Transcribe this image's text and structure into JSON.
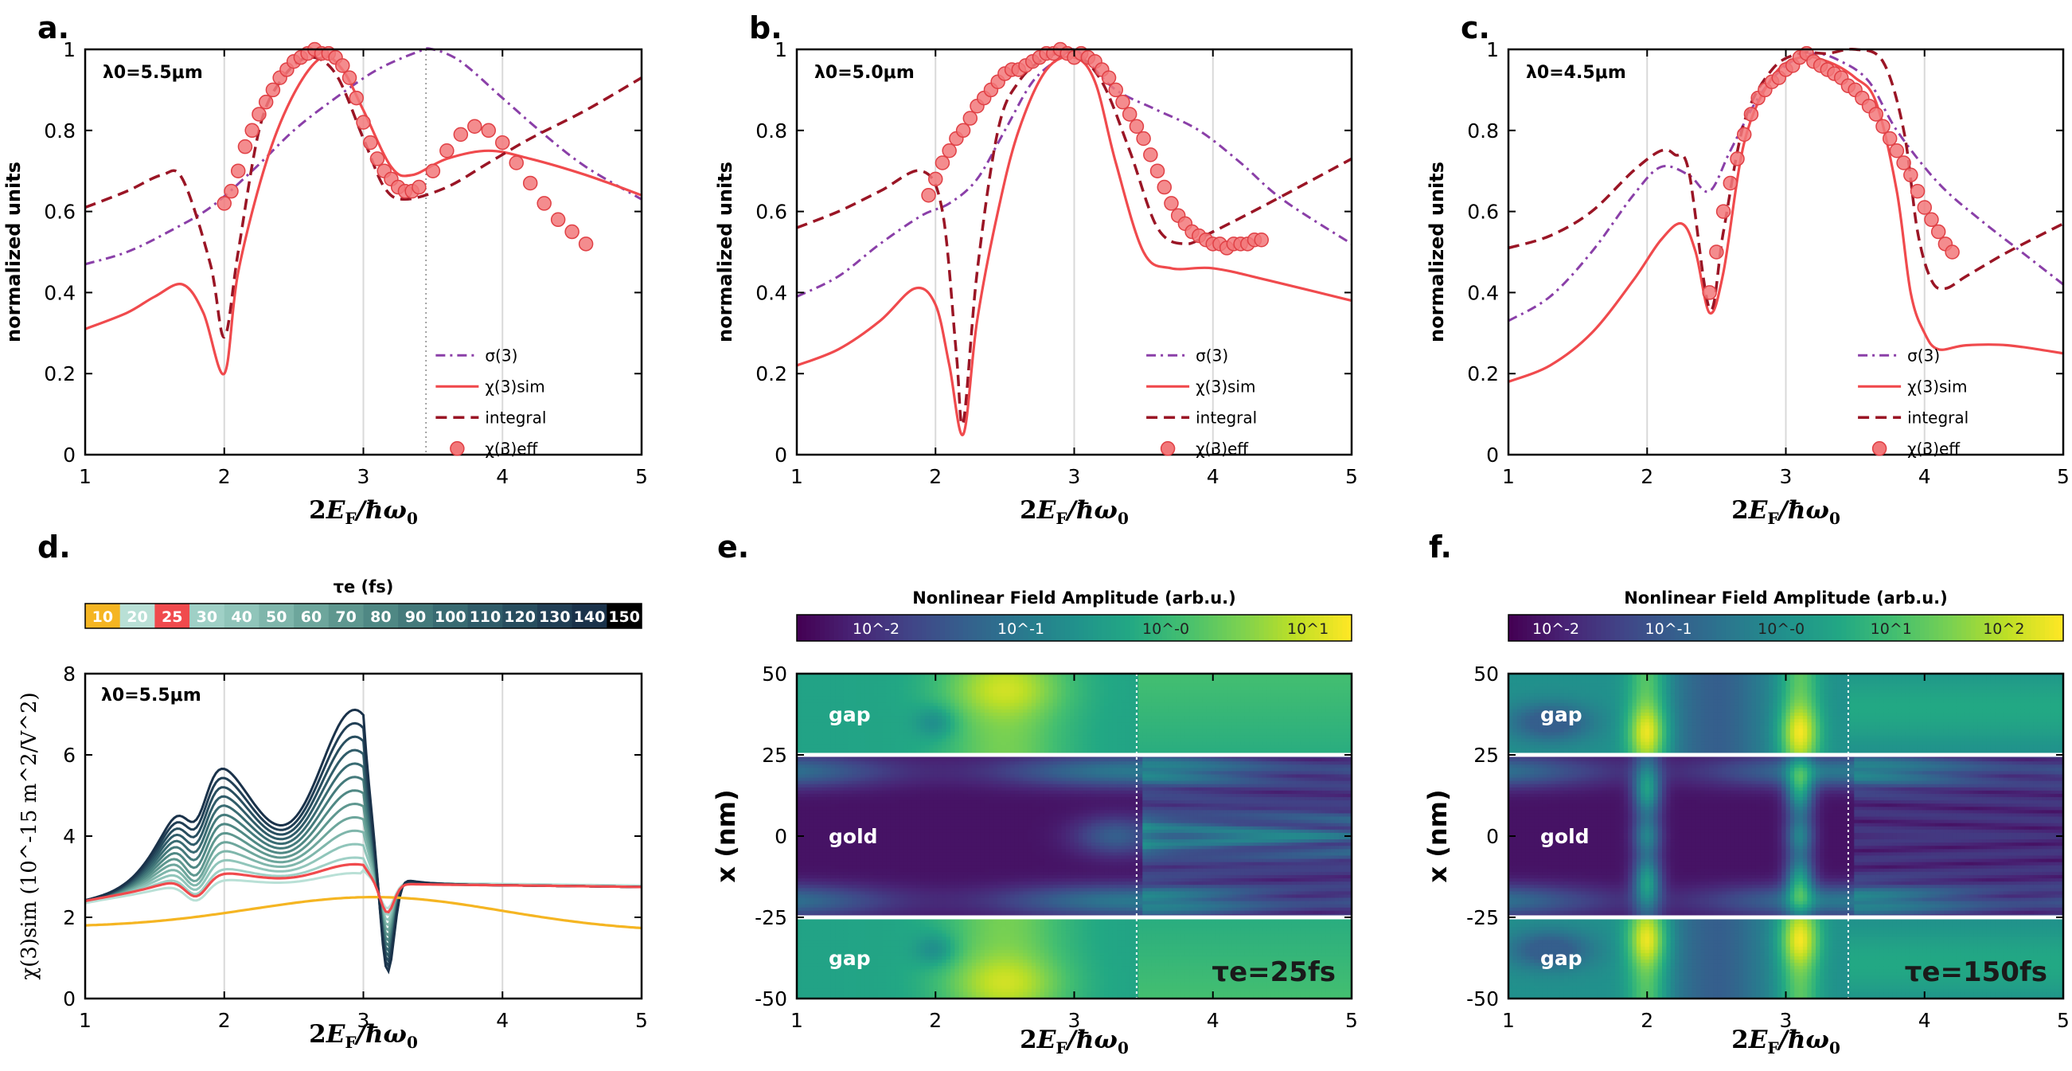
{
  "colors": {
    "sigma": "#8a3fa8",
    "sim": "#f04a4d",
    "integral": "#9a1525",
    "eff_fill": "#f2787a",
    "eff_edge": "#e04045",
    "gridline": "#d9d9d9",
    "white_line": "#ffffff"
  },
  "chart_data": [
    {
      "id": "a",
      "type": "line",
      "panel_label": "a.",
      "annotation_lambda": "λ0=5.5μm",
      "xlabel": "2E_F/ħω_0",
      "ylabel": "normalized units",
      "xlim": [
        1,
        5
      ],
      "ylim": [
        0,
        1
      ],
      "xticks": [
        "1",
        "2",
        "3",
        "4",
        "5"
      ],
      "yticks": [
        "0",
        "0.2",
        "0.4",
        "0.6",
        "0.8",
        "1"
      ],
      "vline_x": 3.45,
      "legend": [
        "σ(3)",
        "χ(3)sim",
        "integral",
        "χ(3)eff"
      ],
      "series": [
        {
          "name": "σ(3)",
          "style": "dashdot",
          "x": [
            1,
            1.3,
            1.6,
            1.9,
            2.2,
            2.5,
            2.8,
            3.1,
            3.4,
            3.5,
            3.7,
            4.0,
            4.3,
            4.6,
            5.0
          ],
          "y": [
            0.47,
            0.5,
            0.55,
            0.61,
            0.7,
            0.8,
            0.88,
            0.95,
            0.995,
            1.0,
            0.97,
            0.88,
            0.79,
            0.71,
            0.63
          ]
        },
        {
          "name": "χ(3)sim",
          "style": "solid",
          "x": [
            1,
            1.3,
            1.5,
            1.7,
            1.85,
            2.0,
            2.1,
            2.3,
            2.5,
            2.7,
            2.85,
            3.0,
            3.2,
            3.35,
            3.6,
            3.9,
            4.2,
            4.6,
            5.0
          ],
          "y": [
            0.31,
            0.35,
            0.39,
            0.42,
            0.35,
            0.2,
            0.45,
            0.72,
            0.89,
            0.98,
            0.95,
            0.85,
            0.71,
            0.69,
            0.73,
            0.75,
            0.73,
            0.69,
            0.64
          ]
        },
        {
          "name": "integral",
          "style": "dashed",
          "x": [
            1,
            1.3,
            1.55,
            1.7,
            1.9,
            2.0,
            2.1,
            2.25,
            2.4,
            2.6,
            2.8,
            3.0,
            3.15,
            3.3,
            3.6,
            3.9,
            4.2,
            4.6,
            5.0
          ],
          "y": [
            0.61,
            0.65,
            0.69,
            0.68,
            0.47,
            0.29,
            0.5,
            0.8,
            0.92,
            0.98,
            0.94,
            0.78,
            0.66,
            0.63,
            0.66,
            0.72,
            0.78,
            0.85,
            0.93
          ]
        },
        {
          "name": "χ(3)eff",
          "style": "markers",
          "x": [
            2.0,
            2.05,
            2.1,
            2.15,
            2.2,
            2.25,
            2.3,
            2.35,
            2.4,
            2.45,
            2.5,
            2.55,
            2.6,
            2.65,
            2.7,
            2.75,
            2.8,
            2.85,
            2.9,
            2.95,
            3.0,
            3.05,
            3.1,
            3.15,
            3.2,
            3.25,
            3.3,
            3.35,
            3.4,
            3.5,
            3.6,
            3.7,
            3.8,
            3.9,
            4.0,
            4.1,
            4.2,
            4.3,
            4.4,
            4.5,
            4.6
          ],
          "y": [
            0.62,
            0.65,
            0.7,
            0.76,
            0.8,
            0.84,
            0.87,
            0.9,
            0.93,
            0.95,
            0.97,
            0.98,
            0.99,
            1.0,
            0.99,
            0.99,
            0.98,
            0.96,
            0.93,
            0.88,
            0.82,
            0.77,
            0.73,
            0.7,
            0.68,
            0.66,
            0.65,
            0.65,
            0.66,
            0.7,
            0.75,
            0.79,
            0.81,
            0.8,
            0.77,
            0.72,
            0.67,
            0.62,
            0.58,
            0.55,
            0.52
          ]
        }
      ]
    },
    {
      "id": "b",
      "type": "line",
      "panel_label": "b.",
      "annotation_lambda": "λ0=5.0μm",
      "xlabel": "2E_F/ħω_0",
      "ylabel": "normalized units",
      "xlim": [
        1,
        5
      ],
      "ylim": [
        0,
        1
      ],
      "xticks": [
        "1",
        "2",
        "3",
        "4",
        "5"
      ],
      "yticks": [
        "0",
        "0.2",
        "0.4",
        "0.6",
        "0.8",
        "1"
      ],
      "vline_x": null,
      "legend": [
        "σ(3)",
        "χ(3)sim",
        "integral",
        "χ(3)eff"
      ],
      "series": [
        {
          "name": "σ(3)",
          "style": "dashdot",
          "x": [
            1,
            1.3,
            1.6,
            1.9,
            2.1,
            2.3,
            2.5,
            2.7,
            2.9,
            3.0,
            3.1,
            3.3,
            3.6,
            3.9,
            4.2,
            4.5,
            5.0
          ],
          "y": [
            0.39,
            0.44,
            0.52,
            0.59,
            0.62,
            0.68,
            0.8,
            0.92,
            0.98,
            1.0,
            0.97,
            0.9,
            0.85,
            0.8,
            0.72,
            0.63,
            0.52
          ]
        },
        {
          "name": "χ(3)sim",
          "style": "solid",
          "x": [
            1,
            1.3,
            1.6,
            1.85,
            2.0,
            2.1,
            2.2,
            2.3,
            2.45,
            2.6,
            2.8,
            3.0,
            3.15,
            3.3,
            3.5,
            3.7,
            4.0,
            4.4,
            5.0
          ],
          "y": [
            0.22,
            0.26,
            0.33,
            0.41,
            0.37,
            0.22,
            0.05,
            0.33,
            0.6,
            0.8,
            0.95,
            0.98,
            0.92,
            0.72,
            0.5,
            0.46,
            0.46,
            0.43,
            0.38
          ]
        },
        {
          "name": "integral",
          "style": "dashed",
          "x": [
            1,
            1.3,
            1.6,
            1.9,
            2.05,
            2.15,
            2.2,
            2.3,
            2.45,
            2.6,
            2.8,
            3.0,
            3.2,
            3.4,
            3.6,
            3.8,
            4.0,
            4.4,
            5.0
          ],
          "y": [
            0.56,
            0.6,
            0.65,
            0.7,
            0.6,
            0.25,
            0.08,
            0.45,
            0.8,
            0.92,
            0.98,
            0.99,
            0.92,
            0.75,
            0.56,
            0.52,
            0.55,
            0.62,
            0.73
          ]
        },
        {
          "name": "χ(3)eff",
          "style": "markers",
          "x": [
            1.95,
            2.0,
            2.05,
            2.1,
            2.15,
            2.2,
            2.25,
            2.3,
            2.35,
            2.4,
            2.45,
            2.5,
            2.55,
            2.6,
            2.65,
            2.7,
            2.75,
            2.8,
            2.85,
            2.9,
            2.95,
            3.0,
            3.05,
            3.1,
            3.15,
            3.2,
            3.25,
            3.3,
            3.35,
            3.4,
            3.45,
            3.5,
            3.55,
            3.6,
            3.65,
            3.7,
            3.75,
            3.8,
            3.85,
            3.9,
            3.95,
            4.0,
            4.05,
            4.1,
            4.15,
            4.2,
            4.25,
            4.3,
            4.35
          ],
          "y": [
            0.64,
            0.68,
            0.72,
            0.75,
            0.78,
            0.8,
            0.83,
            0.86,
            0.88,
            0.9,
            0.92,
            0.94,
            0.95,
            0.95,
            0.96,
            0.97,
            0.98,
            0.99,
            0.99,
            1.0,
            0.99,
            0.98,
            0.99,
            0.98,
            0.97,
            0.95,
            0.93,
            0.9,
            0.87,
            0.84,
            0.81,
            0.78,
            0.74,
            0.7,
            0.66,
            0.62,
            0.59,
            0.57,
            0.55,
            0.54,
            0.53,
            0.52,
            0.52,
            0.51,
            0.52,
            0.52,
            0.52,
            0.53,
            0.53
          ]
        }
      ]
    },
    {
      "id": "c",
      "type": "line",
      "panel_label": "c.",
      "annotation_lambda": "λ0=4.5μm",
      "xlabel": "2E_F/ħω_0",
      "ylabel": "normalized units",
      "xlim": [
        1,
        5
      ],
      "ylim": [
        0,
        1
      ],
      "xticks": [
        "1",
        "2",
        "3",
        "4",
        "5"
      ],
      "yticks": [
        "0",
        "0.2",
        "0.4",
        "0.6",
        "0.8",
        "1"
      ],
      "vline_x": null,
      "legend": [
        "σ(3)",
        "χ(3)sim",
        "integral",
        "χ(3)eff"
      ],
      "series": [
        {
          "name": "σ(3)",
          "style": "dashdot",
          "x": [
            1,
            1.3,
            1.6,
            1.9,
            2.1,
            2.3,
            2.45,
            2.6,
            2.8,
            3.0,
            3.2,
            3.4,
            3.6,
            3.8,
            4.1,
            4.4,
            4.7,
            5.0
          ],
          "y": [
            0.33,
            0.39,
            0.5,
            0.64,
            0.71,
            0.69,
            0.65,
            0.75,
            0.88,
            0.96,
            0.99,
            0.97,
            0.92,
            0.8,
            0.67,
            0.58,
            0.5,
            0.42
          ]
        },
        {
          "name": "χ(3)sim",
          "style": "solid",
          "x": [
            1,
            1.3,
            1.6,
            1.9,
            2.1,
            2.25,
            2.35,
            2.45,
            2.55,
            2.7,
            2.9,
            3.1,
            3.3,
            3.5,
            3.65,
            3.8,
            3.9,
            4.0,
            4.1,
            4.3,
            4.6,
            5.0
          ],
          "y": [
            0.18,
            0.22,
            0.3,
            0.43,
            0.53,
            0.57,
            0.5,
            0.35,
            0.45,
            0.77,
            0.93,
            0.98,
            0.97,
            0.93,
            0.87,
            0.65,
            0.4,
            0.3,
            0.26,
            0.27,
            0.27,
            0.25
          ]
        },
        {
          "name": "integral",
          "style": "dashed",
          "x": [
            1,
            1.3,
            1.6,
            1.9,
            2.1,
            2.2,
            2.3,
            2.45,
            2.55,
            2.7,
            2.9,
            3.1,
            3.3,
            3.5,
            3.7,
            3.85,
            3.95,
            4.05,
            4.15,
            4.3,
            4.6,
            5.0
          ],
          "y": [
            0.51,
            0.54,
            0.6,
            0.7,
            0.75,
            0.74,
            0.7,
            0.36,
            0.55,
            0.82,
            0.95,
            0.99,
            0.99,
            1.0,
            0.97,
            0.8,
            0.55,
            0.43,
            0.41,
            0.44,
            0.5,
            0.57
          ]
        },
        {
          "name": "χ(3)eff",
          "style": "markers",
          "x": [
            2.45,
            2.5,
            2.55,
            2.6,
            2.65,
            2.7,
            2.75,
            2.8,
            2.85,
            2.9,
            2.95,
            3.0,
            3.05,
            3.1,
            3.15,
            3.2,
            3.25,
            3.3,
            3.35,
            3.4,
            3.45,
            3.5,
            3.55,
            3.6,
            3.65,
            3.7,
            3.75,
            3.8,
            3.85,
            3.9,
            3.95,
            4.0,
            4.05,
            4.1,
            4.15,
            4.2
          ],
          "y": [
            0.4,
            0.5,
            0.6,
            0.67,
            0.73,
            0.79,
            0.84,
            0.88,
            0.9,
            0.92,
            0.93,
            0.95,
            0.96,
            0.98,
            0.99,
            0.97,
            0.96,
            0.95,
            0.94,
            0.93,
            0.91,
            0.9,
            0.88,
            0.86,
            0.84,
            0.81,
            0.78,
            0.75,
            0.72,
            0.69,
            0.65,
            0.61,
            0.58,
            0.55,
            0.52,
            0.5
          ]
        }
      ]
    },
    {
      "id": "d",
      "type": "line",
      "panel_label": "d.",
      "annotation_lambda": "λ0=5.5μm",
      "xlabel": "2E_F/ħω_0",
      "ylabel": "χ(3)sim (10^-15 m^2/V^2)",
      "xlim": [
        1,
        5
      ],
      "ylim": [
        0,
        8
      ],
      "xticks": [
        "1",
        "2",
        "3",
        "4",
        "5"
      ],
      "yticks": [
        "0",
        "2",
        "4",
        "6",
        "8"
      ],
      "colorbar_title": "τe (fs)",
      "colorbar_ticks": [
        "10",
        "20",
        "25",
        "30",
        "40",
        "50",
        "60",
        "70",
        "80",
        "90",
        "100",
        "110",
        "120",
        "130",
        "140",
        "150"
      ],
      "tau_values_fs": [
        10,
        20,
        25,
        30,
        40,
        50,
        60,
        70,
        80,
        90,
        100,
        110,
        120,
        130,
        140,
        150
      ],
      "highlight_tau_fs": [
        10,
        25
      ]
    },
    {
      "id": "e",
      "type": "heatmap",
      "panel_label": "e.",
      "colorbar_title": "Nonlinear Field Amplitude (arb.u.)",
      "colorbar_ticks": [
        "10^-2",
        "10^-1",
        "10^-0",
        "10^1"
      ],
      "xlabel": "2E_F/ħω_0",
      "ylabel": "x (nm)",
      "xlim": [
        1,
        5
      ],
      "ylim": [
        -50,
        50
      ],
      "xticks": [
        "1",
        "2",
        "3",
        "4",
        "5"
      ],
      "yticks": [
        "50",
        "25",
        "0",
        "-25",
        "-50"
      ],
      "region_labels": [
        "gap",
        "gold",
        "gap"
      ],
      "boundaries_nm": [
        25,
        -25
      ],
      "vline_x": 3.45,
      "tau_label": "τe=25fs"
    },
    {
      "id": "f",
      "type": "heatmap",
      "panel_label": "f.",
      "colorbar_title": "Nonlinear Field Amplitude (arb.u.)",
      "colorbar_ticks": [
        "10^-2",
        "10^-1",
        "10^-0",
        "10^1",
        "10^2"
      ],
      "xlabel": "2E_F/ħω_0",
      "ylabel": "x (nm)",
      "xlim": [
        1,
        5
      ],
      "ylim": [
        -50,
        50
      ],
      "xticks": [
        "1",
        "2",
        "3",
        "4",
        "5"
      ],
      "yticks": [
        "50",
        "25",
        "0",
        "-25",
        "-50"
      ],
      "region_labels": [
        "gap",
        "gold",
        "gap"
      ],
      "boundaries_nm": [
        25,
        -25
      ],
      "vline_x": 3.45,
      "tau_label": "τe=150fs"
    }
  ]
}
